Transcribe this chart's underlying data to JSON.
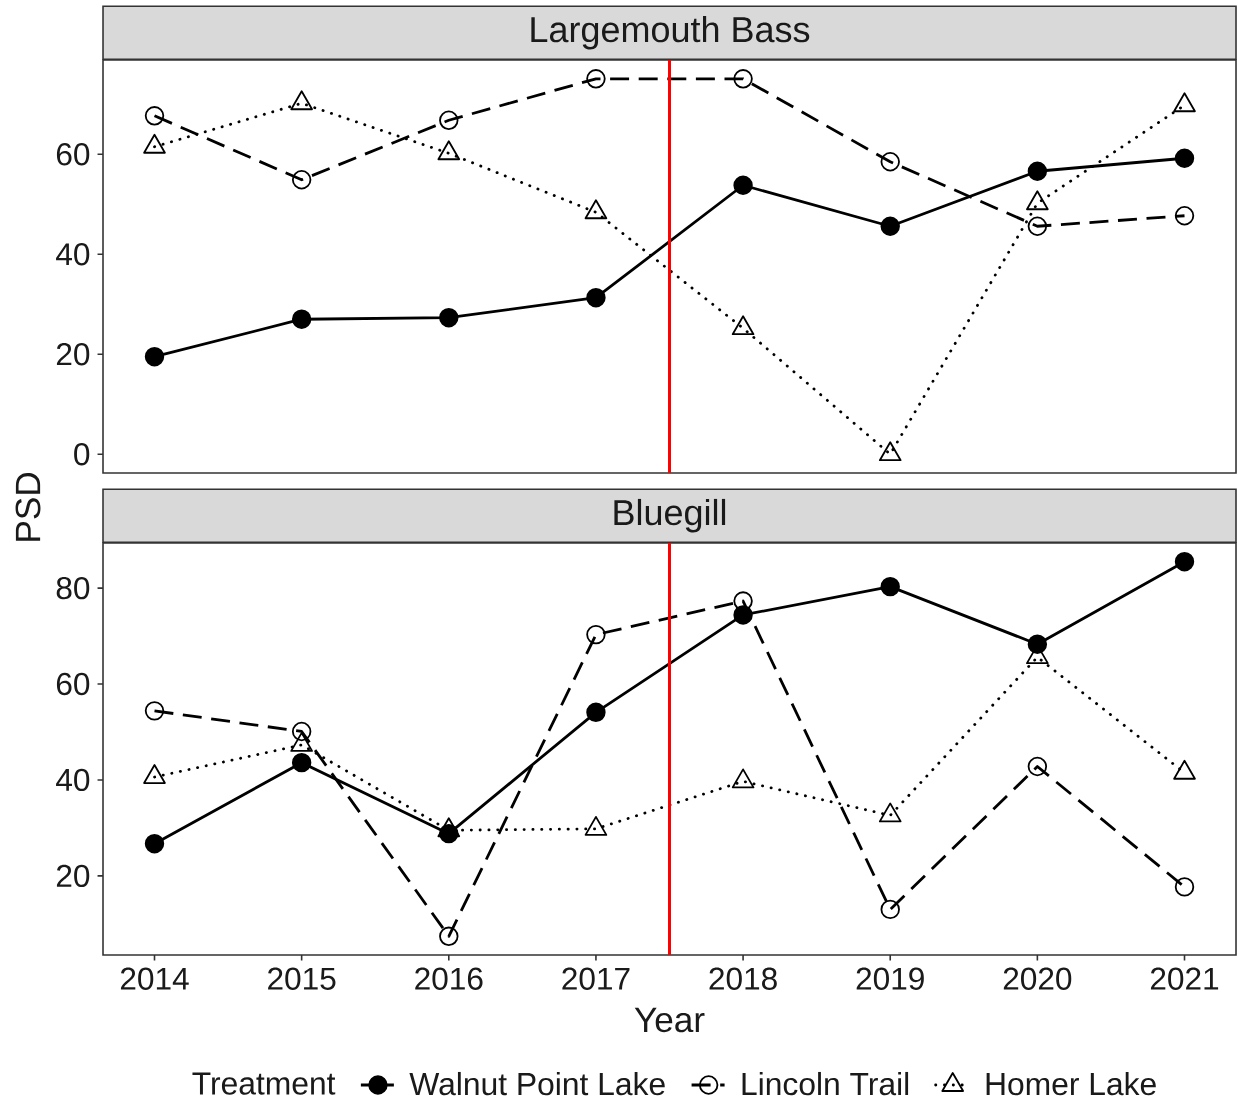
{
  "chart_data": [
    {
      "type": "line",
      "title": "Largemouth Bass",
      "x": [
        2014,
        2015,
        2016,
        2017,
        2018,
        2019,
        2020,
        2021
      ],
      "xlim": [
        2013.65,
        2021.35
      ],
      "xticks": [
        2014,
        2015,
        2016,
        2017,
        2018,
        2019,
        2020,
        2021
      ],
      "ylim": [
        -3.76,
        78.86
      ],
      "yticks": [
        0,
        20,
        40,
        60
      ],
      "tick_labels": "y",
      "ref_lines": [
        {
          "axis": "x",
          "value": 2017.5,
          "color": "#ff0000"
        }
      ],
      "series": [
        {
          "color": "#000000",
          "marker": "circle",
          "line_style": "solid",
          "values": [
            19.5,
            27.0,
            27.3,
            31.3,
            53.8,
            45.6,
            56.6,
            59.2
          ]
        },
        {
          "color": "#000000",
          "marker": "circle",
          "line_style": "dashed",
          "values": [
            67.7,
            54.9,
            66.8,
            75.1,
            75.1,
            58.5,
            45.6,
            47.7
          ]
        },
        {
          "color": "#000000",
          "marker": "triangle",
          "line_style": "dotted",
          "values": [
            61.5,
            70.2,
            60.2,
            48.4,
            25.2,
            0.0,
            50.2,
            69.8
          ]
        }
      ]
    },
    {
      "type": "line",
      "title": "Bluegill",
      "xlabel": "Year",
      "ylabel": "PSD",
      "legend_title": "Treatment",
      "legend": "bottom",
      "x": [
        2014,
        2015,
        2016,
        2017,
        2018,
        2019,
        2020,
        2021
      ],
      "xlim": [
        2013.65,
        2021.35
      ],
      "xticks": [
        2014,
        2015,
        2016,
        2017,
        2018,
        2019,
        2020,
        2021
      ],
      "ylim": [
        3.5,
        89.4
      ],
      "yticks": [
        20,
        40,
        60,
        80
      ],
      "ref_lines": [
        {
          "axis": "x",
          "value": 2017.5,
          "color": "#ff0000"
        }
      ],
      "series": [
        {
          "name": "Walnut Point Lake",
          "color": "#000000",
          "marker": "circle",
          "line_style": "solid",
          "values": [
            26.7,
            43.6,
            28.8,
            54.1,
            74.4,
            80.3,
            68.3,
            85.5
          ]
        },
        {
          "name": "Lincoln Trail",
          "color": "#000000",
          "marker": "circle",
          "line_style": "dashed",
          "values": [
            54.4,
            50.1,
            7.4,
            70.3,
            77.3,
            13.0,
            42.8,
            17.7
          ]
        },
        {
          "name": "Homer Lake",
          "color": "#000000",
          "marker": "triangle",
          "line_style": "dotted",
          "values": [
            40.6,
            47.3,
            29.5,
            29.8,
            39.7,
            32.6,
            65.6,
            41.5
          ]
        }
      ]
    }
  ]
}
